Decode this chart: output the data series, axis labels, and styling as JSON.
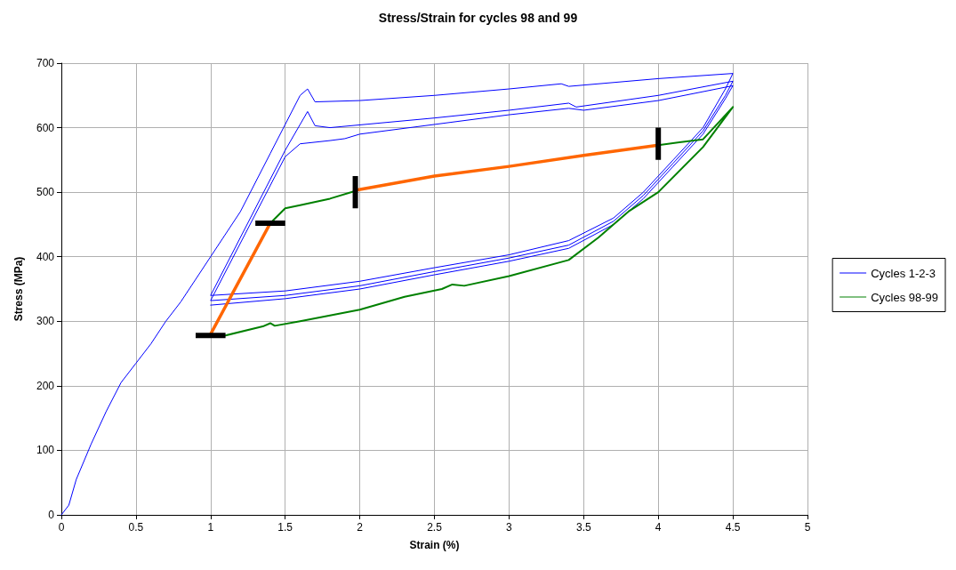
{
  "chart_data": {
    "type": "line",
    "title": "Stress/Strain for cycles 98 and 99",
    "xlabel": "Strain (%)",
    "ylabel": "Stress (MPa)",
    "xlim": [
      0,
      5
    ],
    "xticks": [
      0,
      0.5,
      1,
      1.5,
      2,
      2.5,
      3,
      3.5,
      4,
      4.5,
      5
    ],
    "ylim": [
      0,
      700
    ],
    "yticks": [
      0,
      100,
      200,
      300,
      400,
      500,
      600,
      700
    ],
    "grid": true,
    "legend": "right",
    "marker": "none",
    "line_style": "solid",
    "series": [
      {
        "name": "Cycles 1-2-3",
        "color": "#0000ff",
        "x": [
          0,
          0.05,
          0.1,
          0.2,
          0.3,
          0.4,
          0.5,
          0.6,
          0.7,
          0.8,
          0.9,
          1.0,
          1.2,
          1.4,
          1.6,
          1.65,
          1.7,
          2.0,
          2.5,
          3.0,
          3.35,
          3.4,
          4.0,
          4.5,
          4.45,
          4.3,
          4.1,
          3.9,
          3.7,
          3.4,
          3.0,
          2.5,
          2.0,
          1.5,
          1.0,
          1.5,
          1.6,
          1.65,
          1.7,
          1.8,
          2.5,
          3.0,
          3.4,
          3.45,
          4.0,
          4.5,
          4.45,
          4.3,
          4.1,
          3.9,
          3.7,
          3.4,
          3.0,
          2.5,
          2.0,
          1.5,
          1.0,
          1.5,
          1.6,
          1.8,
          1.9,
          2.0,
          2.5,
          3.0,
          3.4,
          3.5,
          4.0,
          4.5,
          4.45,
          4.3,
          4.1,
          3.9,
          3.7,
          3.4,
          3.0,
          2.5,
          2.0,
          1.5,
          1.0
        ],
        "values": [
          0,
          15,
          55,
          110,
          160,
          205,
          235,
          265,
          300,
          330,
          365,
          400,
          470,
          560,
          650,
          660,
          640,
          642,
          650,
          660,
          668,
          664,
          676,
          684,
          660,
          600,
          550,
          500,
          460,
          425,
          403,
          383,
          362,
          347,
          340,
          565,
          605,
          625,
          603,
          600,
          615,
          627,
          638,
          632,
          650,
          672,
          650,
          595,
          545,
          495,
          455,
          418,
          398,
          377,
          355,
          340,
          332,
          555,
          575,
          580,
          583,
          590,
          605,
          620,
          630,
          627,
          642,
          665,
          645,
          590,
          540,
          490,
          450,
          413,
          393,
          372,
          350,
          335,
          325
        ]
      },
      {
        "name": "Cycles 98-99",
        "color": "#008000",
        "x": [
          1.4,
          1.5,
          1.6,
          1.8,
          1.97,
          null,
          4.0,
          4.3,
          4.5,
          4.3,
          4.0,
          3.8,
          3.6,
          3.4,
          3.0,
          2.7,
          2.62,
          2.55,
          2.3,
          2.0,
          1.6,
          1.43,
          1.4,
          1.35,
          1.1
        ],
        "values": [
          452,
          475,
          480,
          490,
          502,
          null,
          573,
          582,
          632,
          570,
          500,
          470,
          430,
          395,
          370,
          355,
          357,
          350,
          338,
          318,
          300,
          293,
          297,
          292,
          278
        ]
      },
      {
        "color": "#ff6600",
        "x": [
          1.0,
          1.4,
          null,
          1.97,
          2.5,
          3.0,
          3.5,
          4.0
        ],
        "values": [
          280,
          452,
          null,
          503,
          525,
          540,
          557,
          573
        ]
      },
      {
        "color": "#000000",
        "x": [
          0.9,
          1.1,
          null,
          1.3,
          1.5,
          null,
          1.97,
          1.97,
          null,
          4.0,
          4.0
        ],
        "values": [
          278,
          278,
          null,
          452,
          452,
          null,
          475,
          525,
          null,
          550,
          600
        ]
      }
    ]
  }
}
